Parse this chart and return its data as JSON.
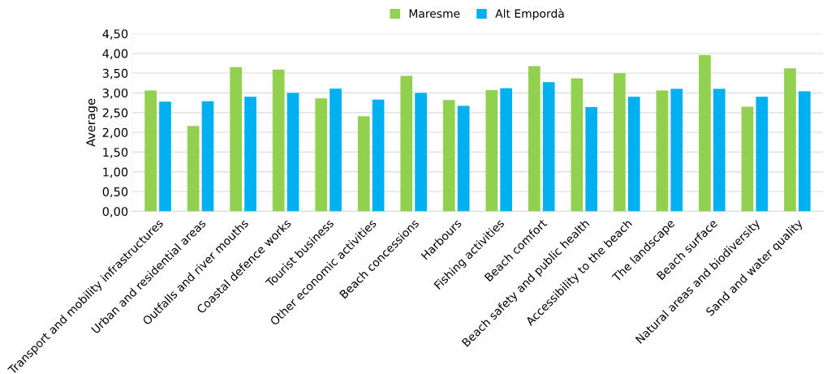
{
  "chart_data": {
    "type": "bar",
    "ylabel": "Average",
    "categories": [
      "Transport and mobility infrastructures",
      "Urban and residential areas",
      "Outfalls and river mouths",
      "Coastal defence works",
      "Tourist business",
      "Other economic activities",
      "Beach concessions",
      "Harbours",
      "Fishing activities",
      "Beach comfort",
      "Beach safety and public health",
      "Accessibility to the beach",
      "The landscape",
      "Beach surface",
      "Natural areas and biodiversity",
      "Sand and water quality"
    ],
    "series": [
      {
        "name": "Maresme",
        "color": "#92d050",
        "values": [
          3.06,
          2.16,
          3.65,
          3.59,
          2.86,
          2.41,
          3.43,
          2.82,
          3.07,
          3.68,
          3.37,
          3.5,
          3.06,
          3.96,
          2.65,
          3.62
        ]
      },
      {
        "name": "Alt Empordà",
        "color": "#00b0f0",
        "values": [
          2.78,
          2.79,
          2.9,
          3.0,
          3.11,
          2.83,
          3.0,
          2.67,
          3.12,
          3.27,
          2.64,
          2.9,
          3.1,
          3.1,
          2.9,
          3.04
        ]
      }
    ],
    "ylim": [
      0,
      4.5
    ],
    "yticks": [
      {
        "value": 0,
        "label": "0,00"
      },
      {
        "value": 0.5,
        "label": "0,50"
      },
      {
        "value": 1,
        "label": "1,00"
      },
      {
        "value": 1.5,
        "label": "1,50"
      },
      {
        "value": 2,
        "label": "2,00"
      },
      {
        "value": 2.5,
        "label": "2,50"
      },
      {
        "value": 3,
        "label": "3,00"
      },
      {
        "value": 3.5,
        "label": "3,50"
      },
      {
        "value": 4,
        "label": "4,00"
      },
      {
        "value": 4.5,
        "label": "4,50"
      }
    ],
    "grid": "y",
    "legend": "top"
  }
}
